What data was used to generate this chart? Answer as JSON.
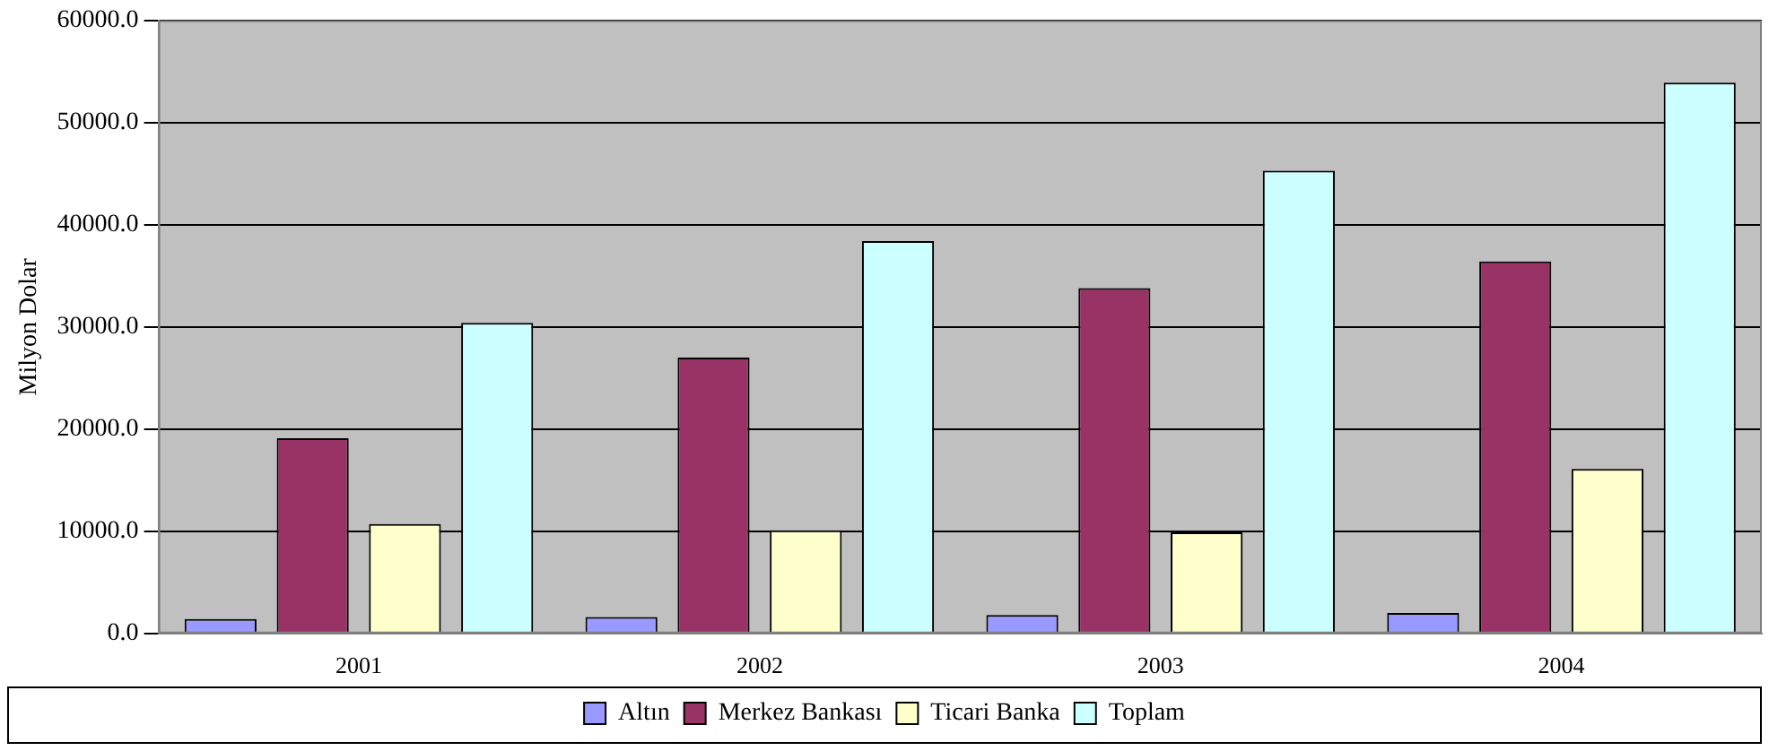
{
  "chart_data": {
    "type": "bar",
    "ylabel": "Milyon Dolar",
    "categories": [
      "2001",
      "2002",
      "2003",
      "2004"
    ],
    "series": [
      {
        "name": "Altın",
        "color": "#9999ff",
        "values": [
          1400,
          1600,
          1800,
          2000
        ]
      },
      {
        "name": "Merkez Bankası",
        "color": "#993366",
        "values": [
          19100,
          27000,
          33800,
          36400
        ]
      },
      {
        "name": "Ticari Banka",
        "color": "#ffffcc",
        "values": [
          10700,
          10100,
          9900,
          16100
        ]
      },
      {
        "name": "Toplam",
        "color": "#ccffff",
        "values": [
          30400,
          38400,
          45300,
          53900
        ]
      }
    ],
    "ylim": [
      0,
      60000
    ],
    "yticks": [
      {
        "value": 0,
        "label": "0.0"
      },
      {
        "value": 10000,
        "label": "10000.0"
      },
      {
        "value": 20000,
        "label": "20000.0"
      },
      {
        "value": 30000,
        "label": "30000.0"
      },
      {
        "value": 40000,
        "label": "40000.0"
      },
      {
        "value": 50000,
        "label": "50000.0"
      },
      {
        "value": 60000,
        "label": "60000.0"
      }
    ],
    "grid": "y",
    "legend": "bottom"
  }
}
